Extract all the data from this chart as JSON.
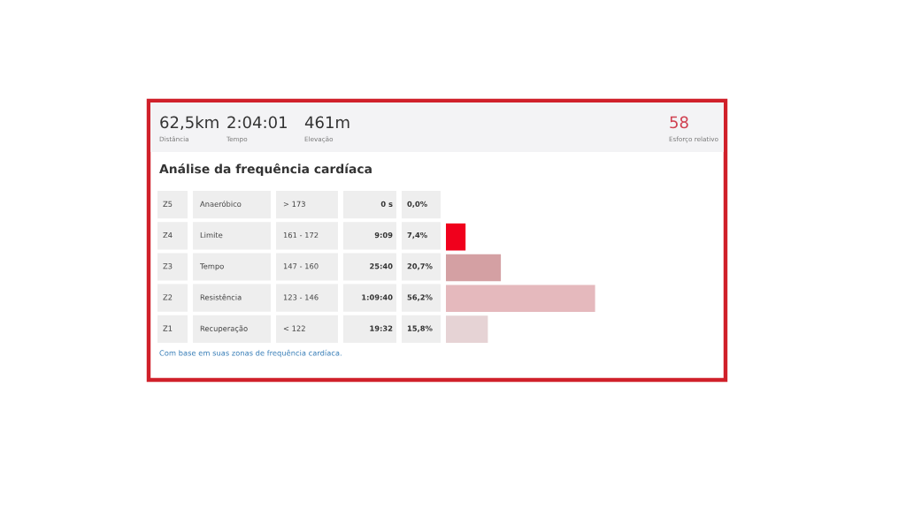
{
  "chart_data": {
    "type": "bar",
    "orientation": "horizontal",
    "title": "Análise da frequência cardíaca",
    "categories": [
      "Z5",
      "Z4",
      "Z3",
      "Z2",
      "Z1"
    ],
    "values": [
      0.0,
      7.4,
      20.7,
      56.2,
      15.8
    ],
    "value_labels": [
      "0,0%",
      "7,4%",
      "20,7%",
      "56,2%",
      "15,8%"
    ],
    "colors": [
      "#e6d3d5",
      "#f0001c",
      "#d4a0a3",
      "#e5b9bd",
      "#e6d3d5"
    ],
    "annotations": [
      "62,5km",
      "Distância",
      "2:04:01",
      "Tempo",
      "461m",
      "Elevação",
      "58",
      "Esforço relativo",
      "Com base em suas zonas de frequência cardíaca.",
      "Anaeróbico",
      "> 173",
      "0 s",
      "Limite",
      "161 - 172",
      "9:09",
      "Tempo",
      "147 - 160",
      "25:40",
      "Resistência",
      "123 - 146",
      "1:09:40",
      "Recuperação",
      "< 122",
      "19:32"
    ]
  }
}
